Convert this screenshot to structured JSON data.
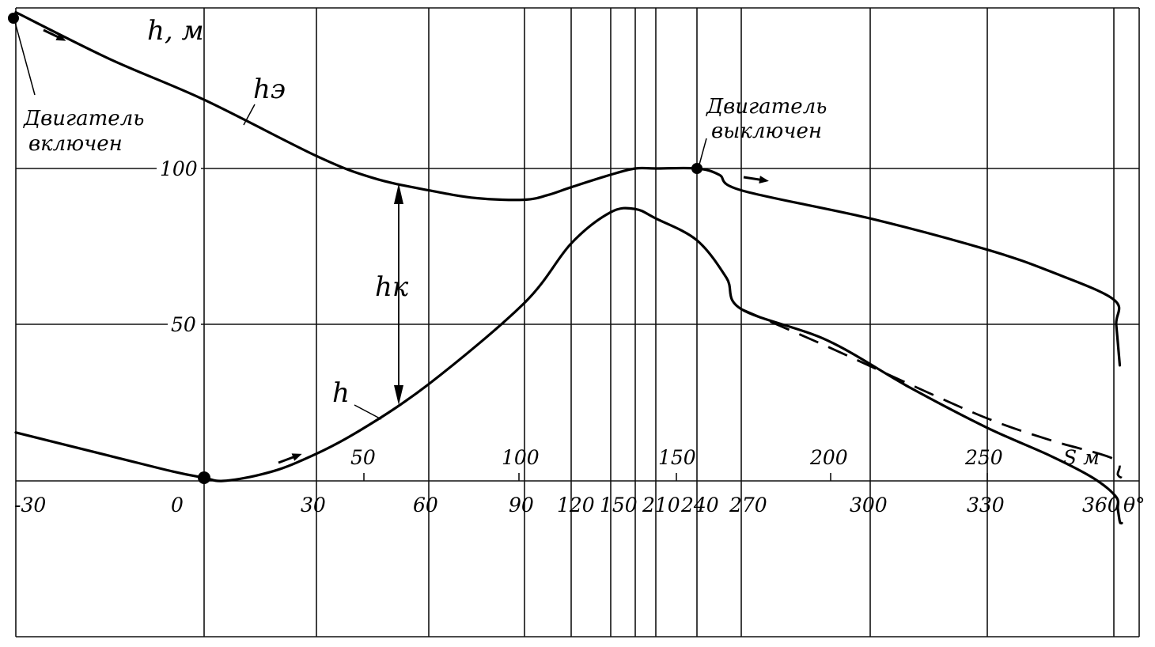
{
  "chart_data": {
    "type": "line",
    "y_label": "h, м",
    "y_ticks": [
      "100",
      "50"
    ],
    "theta_ticks": [
      "-30",
      "0",
      "30",
      "60",
      "90",
      "120",
      "150",
      "210",
      "240",
      "270",
      "300",
      "330",
      "360"
    ],
    "theta_unit": "θ°",
    "s_ticks": [
      "50",
      "100",
      "150",
      "200",
      "250"
    ],
    "s_unit": "S м",
    "series": [
      {
        "name": "hэ",
        "points": [
          [
            -30,
            150
          ],
          [
            -15,
            135
          ],
          [
            0,
            122
          ],
          [
            30,
            104
          ],
          [
            45,
            97
          ],
          [
            60,
            93
          ],
          [
            75,
            90.5
          ],
          [
            90,
            90
          ],
          [
            105,
            91.5
          ],
          [
            120,
            94
          ],
          [
            150,
            98
          ],
          [
            180,
            100
          ],
          [
            210,
            100
          ],
          [
            240,
            100
          ],
          [
            255,
            98
          ],
          [
            270,
            93
          ],
          [
            300,
            84
          ],
          [
            330,
            74
          ],
          [
            345,
            67
          ],
          [
            360,
            58
          ],
          [
            372,
            50
          ],
          [
            390,
            37
          ]
        ]
      },
      {
        "name": "h",
        "points": [
          [
            -30,
            15.5
          ],
          [
            -15,
            8
          ],
          [
            -5,
            3
          ],
          [
            0,
            1
          ],
          [
            5,
            0
          ],
          [
            15,
            2
          ],
          [
            25,
            6
          ],
          [
            40,
            15
          ],
          [
            60,
            31
          ],
          [
            90,
            57
          ],
          [
            120,
            76
          ],
          [
            150,
            86
          ],
          [
            180,
            87
          ],
          [
            210,
            84
          ],
          [
            240,
            77
          ],
          [
            260,
            65
          ],
          [
            270,
            55
          ],
          [
            290,
            45
          ],
          [
            310,
            30
          ],
          [
            330,
            17
          ],
          [
            345,
            8
          ],
          [
            355,
            1
          ],
          [
            370,
            -5
          ],
          [
            380,
            -9
          ],
          [
            390,
            -13
          ],
          [
            396,
            -13.5
          ],
          [
            400,
            -13.5
          ]
        ]
      },
      {
        "name": "",
        "points": [
          [
            270,
            55
          ],
          [
            290,
            43
          ],
          [
            310,
            31
          ],
          [
            330,
            20
          ],
          [
            345,
            13
          ],
          [
            360,
            7
          ],
          [
            380,
            2
          ],
          [
            400,
            1
          ]
        ]
      }
    ],
    "annotations": {
      "engine_on": [
        "Двигатель",
        "включен"
      ],
      "engine_off": [
        "Двигатель",
        "выключен"
      ],
      "h_e": "hэ",
      "h": "h",
      "h_k": "hк"
    }
  }
}
